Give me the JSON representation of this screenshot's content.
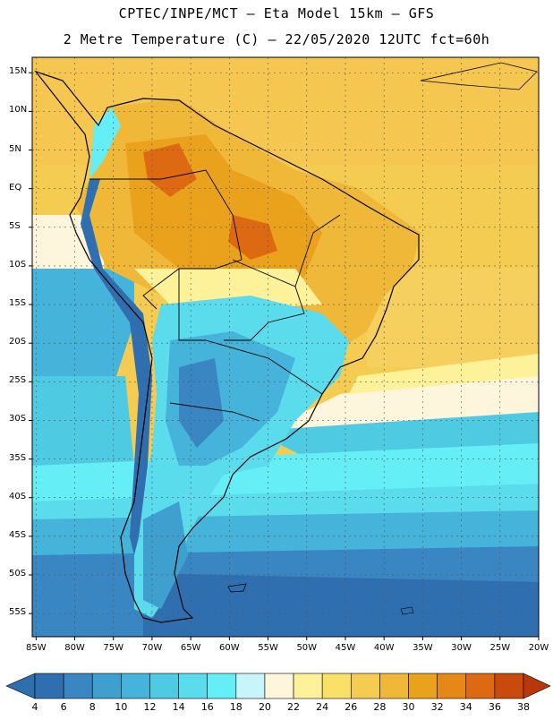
{
  "header": {
    "line1": "CPTEC/INPE/MCT –  Eta Model 15km – GFS",
    "line2": "2 Metre Temperature (C) – 22/05/2020 12UTC fct=60h"
  },
  "map": {
    "lat_labels": [
      "15N",
      "10N",
      "5N",
      "EQ",
      "5S",
      "10S",
      "15S",
      "20S",
      "25S",
      "30S",
      "35S",
      "40S",
      "45S",
      "50S",
      "55S"
    ],
    "lat_values": [
      15,
      10,
      5,
      0,
      -5,
      -10,
      -15,
      -20,
      -25,
      -30,
      -35,
      -40,
      -45,
      -50,
      -55
    ],
    "lon_labels": [
      "85W",
      "80W",
      "75W",
      "70W",
      "65W",
      "60W",
      "55W",
      "50W",
      "45W",
      "40W",
      "35W",
      "30W",
      "25W",
      "20W"
    ],
    "lon_values": [
      -85,
      -80,
      -75,
      -70,
      -65,
      -60,
      -55,
      -50,
      -45,
      -40,
      -35,
      -30,
      -25,
      -20
    ],
    "extent": {
      "lon_min": -85.5,
      "lon_max": -20,
      "lat_min": -58,
      "lat_max": 17
    }
  },
  "colorbar": {
    "levels": [
      "4",
      "6",
      "8",
      "10",
      "12",
      "14",
      "16",
      "18",
      "20",
      "22",
      "24",
      "26",
      "28",
      "30",
      "32",
      "34",
      "36",
      "38"
    ],
    "colors": [
      "#2f6fb0",
      "#3a86c2",
      "#3f9fcf",
      "#45b3da",
      "#4ecae3",
      "#5adcec",
      "#66eef6",
      "#c8f4fb",
      "#fdf6dc",
      "#fdf19a",
      "#f9e068",
      "#f4cc52",
      "#efb838",
      "#eaa21c",
      "#e58818",
      "#dd6a12",
      "#c84a0c"
    ]
  }
}
